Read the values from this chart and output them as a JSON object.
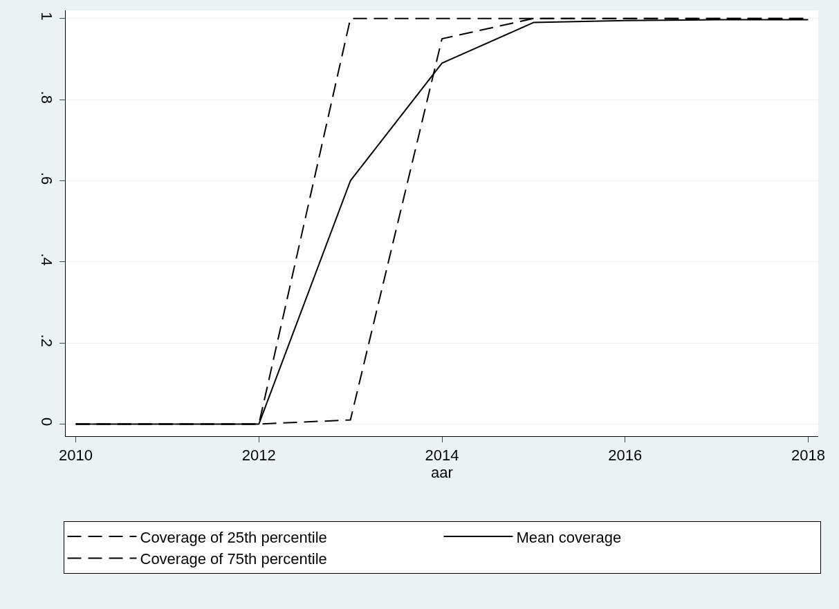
{
  "chart_data": {
    "type": "line",
    "xlabel": "aar",
    "x": [
      2010,
      2011,
      2012,
      2013,
      2014,
      2015,
      2016,
      2017,
      2018
    ],
    "series": [
      {
        "name": "Coverage of 25th percentile",
        "color": "#000000",
        "line_style": "dashed",
        "values": [
          0,
          0,
          0,
          0.01,
          0.95,
          1,
          1,
          1,
          1
        ]
      },
      {
        "name": "Mean coverage",
        "color": "#000000",
        "line_style": "solid",
        "values": [
          0,
          0,
          0,
          0.6,
          0.89,
          0.99,
          0.995,
          0.997,
          0.997
        ]
      },
      {
        "name": "Coverage of 75th percentile",
        "color": "#000000",
        "line_style": "dashed",
        "values": [
          0,
          0,
          0,
          1,
          1,
          1,
          1,
          1,
          1
        ]
      }
    ],
    "xlim": [
      2009.89,
      2018.11
    ],
    "xticks": [
      2010,
      2012,
      2014,
      2016,
      2018
    ],
    "ylim": [
      -0.03,
      1.02
    ],
    "yticks": [
      {
        "value": 0,
        "label": "0"
      },
      {
        "value": 0.2,
        "label": ".2"
      },
      {
        "value": 0.4,
        "label": ".4"
      },
      {
        "value": 0.6,
        "label": ".6"
      },
      {
        "value": 0.8,
        "label": ".8"
      },
      {
        "value": 1,
        "label": "1"
      }
    ],
    "grid": "y",
    "legend": "bottom",
    "marker": "none"
  }
}
